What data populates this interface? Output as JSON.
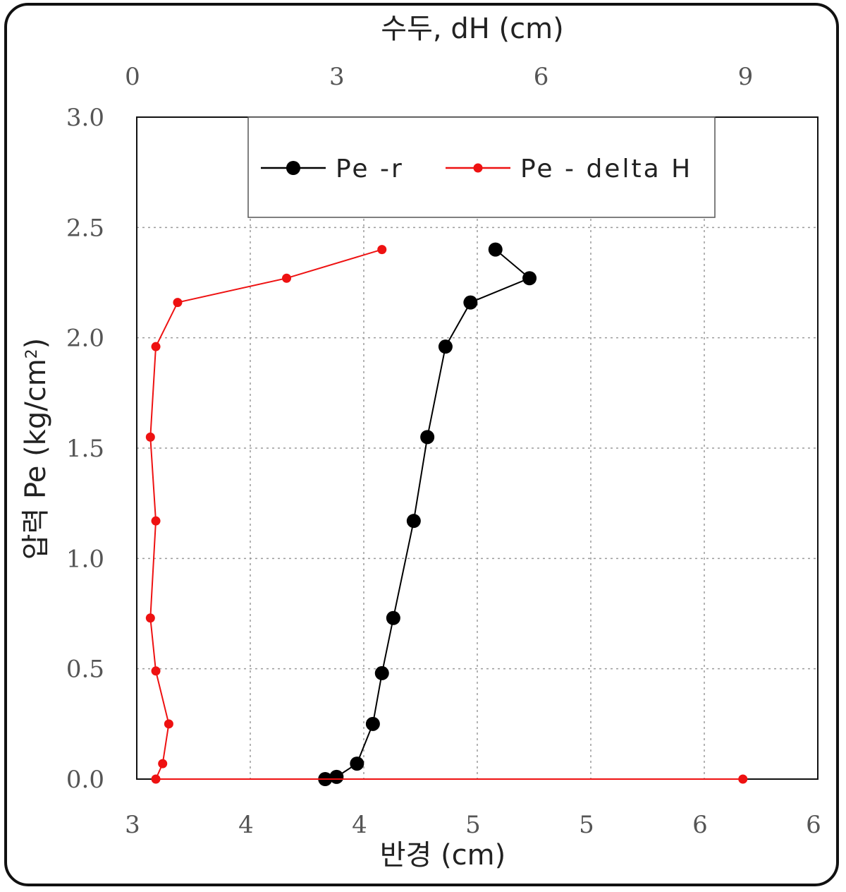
{
  "chart_data": {
    "type": "line",
    "top_axis": {
      "title": "수두, dH (cm)",
      "range": [
        0,
        10
      ],
      "ticks": [
        0,
        3,
        6,
        9
      ],
      "tick_labels": [
        "0",
        "3",
        "6",
        "9"
      ]
    },
    "bottom_axis": {
      "title": "반경 (cm)",
      "range": [
        3,
        6
      ],
      "ticks": [
        3,
        3.5,
        4,
        4.5,
        5,
        5.5,
        6
      ],
      "tick_labels": [
        "3",
        "4",
        "4",
        "5",
        "5",
        "6",
        "6"
      ]
    },
    "left_axis": {
      "title_prefix": "압력 Pe (kg/cm",
      "title_sup": "2",
      "title_suffix": ")",
      "range": [
        0,
        3
      ],
      "ticks": [
        0,
        0.5,
        1,
        1.5,
        2,
        2.5,
        3
      ],
      "tick_labels": [
        "0.0",
        "0.5",
        "1.0",
        "1.5",
        "2.0",
        "2.5",
        "3.0"
      ]
    },
    "grid": true,
    "legend_position": "top",
    "series": [
      {
        "name": "Pe -r",
        "axis": "bottom",
        "color": "#000000",
        "marker": "large-circle",
        "x": [
          3.83,
          3.88,
          3.97,
          4.04,
          4.08,
          4.13,
          4.22,
          4.28,
          4.36,
          4.47,
          4.73,
          4.58
        ],
        "y": [
          0.0,
          0.01,
          0.07,
          0.25,
          0.48,
          0.73,
          1.17,
          1.55,
          1.96,
          2.16,
          2.27,
          2.4
        ]
      },
      {
        "name": "Pe - delta H",
        "axis": "top",
        "color": "#ee1111",
        "marker": "small-circle",
        "x": [
          8.9,
          0.28,
          0.38,
          0.47,
          0.28,
          0.2,
          0.28,
          0.2,
          0.28,
          0.6,
          2.2,
          3.6
        ],
        "y": [
          0.0,
          0.0,
          0.07,
          0.25,
          0.49,
          0.73,
          1.17,
          1.55,
          1.96,
          2.16,
          2.27,
          2.4
        ]
      }
    ]
  }
}
